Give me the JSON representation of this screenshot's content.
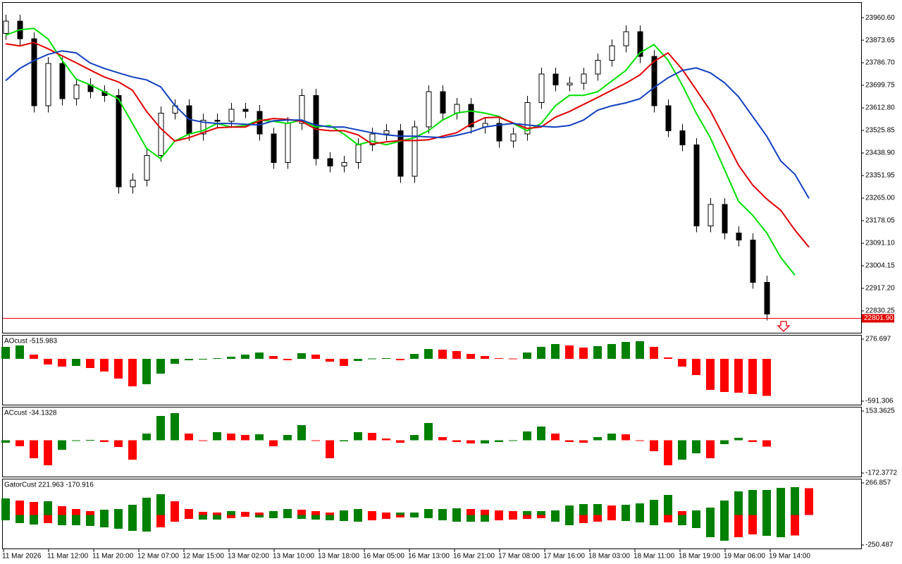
{
  "chart_data": [
    {
      "type": "candlestick",
      "open": [
        23900,
        23947,
        23879,
        23621,
        23784,
        23648,
        23702,
        23675,
        23661,
        23308,
        23335,
        23430,
        23593,
        23621,
        23512,
        23566,
        23561,
        23607,
        23599,
        23512,
        23403,
        23553,
        23661,
        23417,
        23389,
        23403,
        23471,
        23512,
        23525,
        23349,
        23539,
        23675,
        23593,
        23626,
        23539,
        23553,
        23485,
        23512,
        23634,
        23743,
        23702,
        23708,
        23743,
        23797,
        23852,
        23906,
        23811,
        23621,
        23525,
        23471,
        23158,
        23240,
        23131,
        23104,
        22941
      ],
      "high": [
        23972,
        23972,
        23904,
        23809,
        23809,
        23727,
        23727,
        23700,
        23686,
        23360,
        23455,
        23618,
        23646,
        23646,
        23591,
        23591,
        23632,
        23632,
        23624,
        23537,
        23578,
        23686,
        23686,
        23442,
        23428,
        23496,
        23537,
        23550,
        23550,
        23564,
        23700,
        23700,
        23651,
        23651,
        23578,
        23578,
        23537,
        23659,
        23768,
        23768,
        23733,
        23768,
        23822,
        23877,
        23931,
        23931,
        23836,
        23646,
        23550,
        23496,
        23265,
        23265,
        23156,
        23129,
        22966
      ],
      "low": [
        23875,
        23854,
        23596,
        23596,
        23623,
        23623,
        23650,
        23636,
        23283,
        23283,
        23310,
        23405,
        23568,
        23487,
        23487,
        23536,
        23536,
        23574,
        23487,
        23378,
        23378,
        23528,
        23392,
        23364,
        23364,
        23378,
        23446,
        23487,
        23324,
        23324,
        23514,
        23568,
        23568,
        23514,
        23514,
        23460,
        23460,
        23487,
        23609,
        23677,
        23677,
        23683,
        23718,
        23772,
        23827,
        23786,
        23596,
        23500,
        23446,
        23133,
        23133,
        23106,
        23079,
        22916,
        22793
      ],
      "close": [
        23947,
        23879,
        23621,
        23784,
        23648,
        23702,
        23675,
        23661,
        23308,
        23335,
        23430,
        23593,
        23621,
        23512,
        23566,
        23561,
        23607,
        23599,
        23512,
        23403,
        23553,
        23661,
        23417,
        23389,
        23403,
        23471,
        23512,
        23525,
        23349,
        23539,
        23675,
        23593,
        23626,
        23539,
        23553,
        23485,
        23512,
        23634,
        23743,
        23702,
        23708,
        23743,
        23797,
        23852,
        23906,
        23811,
        23621,
        23525,
        23471,
        23158,
        23240,
        23131,
        23104,
        22941,
        22818
      ],
      "up_color": "#ffffff",
      "down_color": "#000000",
      "lines": [
        {
          "color": "#00e000",
          "values": [
            23893,
            23914,
            23920,
            23879,
            23797,
            23724,
            23702,
            23675,
            23648,
            23553,
            23457,
            23417,
            23485,
            23512,
            23525,
            23553,
            23539,
            23545,
            23566,
            23561,
            23553,
            23566,
            23539,
            23545,
            23512,
            23471,
            23485,
            23471,
            23485,
            23498,
            23525,
            23566,
            23593,
            23601,
            23593,
            23580,
            23553,
            23525,
            23553,
            23621,
            23661,
            23661,
            23675,
            23716,
            23757,
            23825,
            23857,
            23797,
            23702,
            23593,
            23498,
            23376,
            23253,
            23199,
            23131,
            23036,
            22968,
            null
          ]
        },
        {
          "color": "#e00000",
          "values": [
            23860,
            23852,
            23865,
            23841,
            23814,
            23787,
            23759,
            23732,
            23713,
            23681,
            23599,
            23534,
            23485,
            23498,
            23517,
            23536,
            23539,
            23539,
            23563,
            23572,
            23569,
            23561,
            23531,
            23525,
            23525,
            23509,
            23474,
            23482,
            23487,
            23487,
            23490,
            23504,
            23517,
            23550,
            23575,
            23577,
            23555,
            23534,
            23539,
            23577,
            23599,
            23626,
            23653,
            23681,
            23708,
            23740,
            23792,
            23825,
            23762,
            23683,
            23602,
            23498,
            23392,
            23316,
            23262,
            23218,
            23142,
            23076
          ]
        },
        {
          "color": "#1040c0",
          "values": [
            23718,
            23765,
            23795,
            23819,
            23833,
            23825,
            23786,
            23765,
            23748,
            23732,
            23721,
            23694,
            23623,
            23569,
            23558,
            23553,
            23553,
            23550,
            23547,
            23563,
            23566,
            23566,
            23547,
            23539,
            23539,
            23528,
            23517,
            23509,
            23504,
            23504,
            23501,
            23498,
            23507,
            23520,
            23539,
            23547,
            23553,
            23547,
            23542,
            23539,
            23545,
            23566,
            23604,
            23621,
            23632,
            23648,
            23691,
            23729,
            23757,
            23767,
            23748,
            23710,
            23656,
            23580,
            23504,
            23408,
            23357,
            23264
          ]
        }
      ],
      "price_line": {
        "value": 22801.9,
        "label": "22801.90",
        "color": "#e00000"
      },
      "ylim": [
        22746,
        24018
      ],
      "yticks": [
        {
          "value": 23960.6,
          "label": "23960.60"
        },
        23873.65,
        {
          "value": 23786.7,
          "label": "23786.70"
        },
        23699.75,
        {
          "value": 23612.8,
          "label": "23612.80"
        },
        23525.85,
        {
          "value": 23438.9,
          "label": "23438.90"
        },
        23351.95,
        {
          "value": 23265,
          "label": "23265.00"
        },
        23178.05,
        {
          "value": 23091.1,
          "label": "23091.10"
        },
        23004.15,
        {
          "value": 22917.2,
          "label": "22917.20"
        },
        22830.25
      ]
    },
    {
      "type": "bar",
      "title": "AOcust -515.983",
      "values": [
        168,
        187,
        59,
        -79,
        -109,
        -99,
        -128,
        -178,
        -276,
        -385,
        -355,
        -207,
        -69,
        -20,
        -10,
        10,
        30,
        59,
        89,
        39,
        -20,
        79,
        59,
        -39,
        -99,
        -30,
        5,
        10,
        -20,
        69,
        138,
        128,
        109,
        69,
        39,
        10,
        5,
        89,
        168,
        207,
        187,
        158,
        178,
        207,
        237,
        247,
        168,
        20,
        -109,
        -227,
        -434,
        -464,
        -474,
        -493,
        -515.983
      ],
      "up_color": "#008000",
      "down_color": "#ff0000",
      "ylim": [
        -640.6,
        326.0
      ],
      "yticks": [
        276.697,
        -591.306
      ]
    },
    {
      "type": "bar",
      "title": "ACcust -34.1328",
      "values": [
        -13,
        -32,
        -95,
        -132,
        -50,
        -2,
        1,
        -10,
        -36,
        -102,
        35,
        127,
        142,
        35,
        -2,
        42,
        35,
        27,
        31,
        -32,
        27,
        79,
        -2,
        -95,
        -6,
        42,
        38,
        9,
        -13,
        27,
        90,
        16,
        -10,
        -17,
        -17,
        -10,
        -2,
        46,
        72,
        35,
        -10,
        -13,
        16,
        35,
        31,
        -2,
        -58,
        -132,
        -102,
        -69,
        -95,
        -21,
        13,
        -10,
        -34.1328
      ],
      "up_color": "#008000",
      "down_color": "#ff0000",
      "ylim": [
        -190.9,
        171.9
      ],
      "yticks": [
        153.3625,
        -172.3772
      ]
    },
    {
      "type": "bar",
      "title": "GatorCust 221.963 -170.916",
      "series": [
        {
          "values": [
            138,
            120,
            108,
            114,
            73,
            49,
            32,
            44,
            49,
            85,
            143,
            173,
            114,
            49,
            26,
            20,
            32,
            26,
            20,
            32,
            49,
            44,
            32,
            20,
            38,
            49,
            32,
            20,
            20,
            20,
            49,
            49,
            55,
            49,
            44,
            38,
            32,
            32,
            32,
            38,
            79,
            91,
            91,
            79,
            85,
            96,
            126,
            167,
            32,
            38,
            61,
            120,
            196,
            208,
            208,
            226,
            232,
            221.963
          ]
        },
        {
          "values": [
            -45,
            -68,
            -80,
            -68,
            -86,
            -86,
            -92,
            -103,
            -115,
            -133,
            -139,
            -103,
            -56,
            -33,
            -39,
            -39,
            -27,
            -15,
            -21,
            -27,
            -27,
            -33,
            -39,
            -45,
            -51,
            -56,
            -45,
            -33,
            -21,
            -21,
            -27,
            -45,
            -56,
            -56,
            -56,
            -45,
            -39,
            -33,
            -27,
            -56,
            -86,
            -68,
            -56,
            -45,
            -51,
            -62,
            -86,
            -62,
            -86,
            -109,
            -186,
            -215,
            -186,
            -162,
            -174,
            -186,
            -170.916,
            null
          ]
        }
      ],
      "up_color": "#008000",
      "down_color": "#ff0000",
      "ylim": [
        -279.88,
        296.25
      ],
      "yticks": [
        266.857,
        -250.487
      ],
      "xtick_labels": [
        "11 Mar 2026",
        "11 Mar 12:00",
        "11 Mar 20:00",
        "12 Mar 07:00",
        "12 Mar 15:00",
        "13 Mar 02:00",
        "13 Mar 10:00",
        "13 Mar 18:00",
        "16 Mar 05:00",
        "16 Mar 13:00",
        "16 Mar 21:00",
        "17 Mar 08:00",
        "17 Mar 16:00",
        "18 Mar 03:00",
        "18 Mar 11:00",
        "18 Mar 19:00",
        "19 Mar 06:00",
        "19 Mar 14:00"
      ]
    }
  ]
}
